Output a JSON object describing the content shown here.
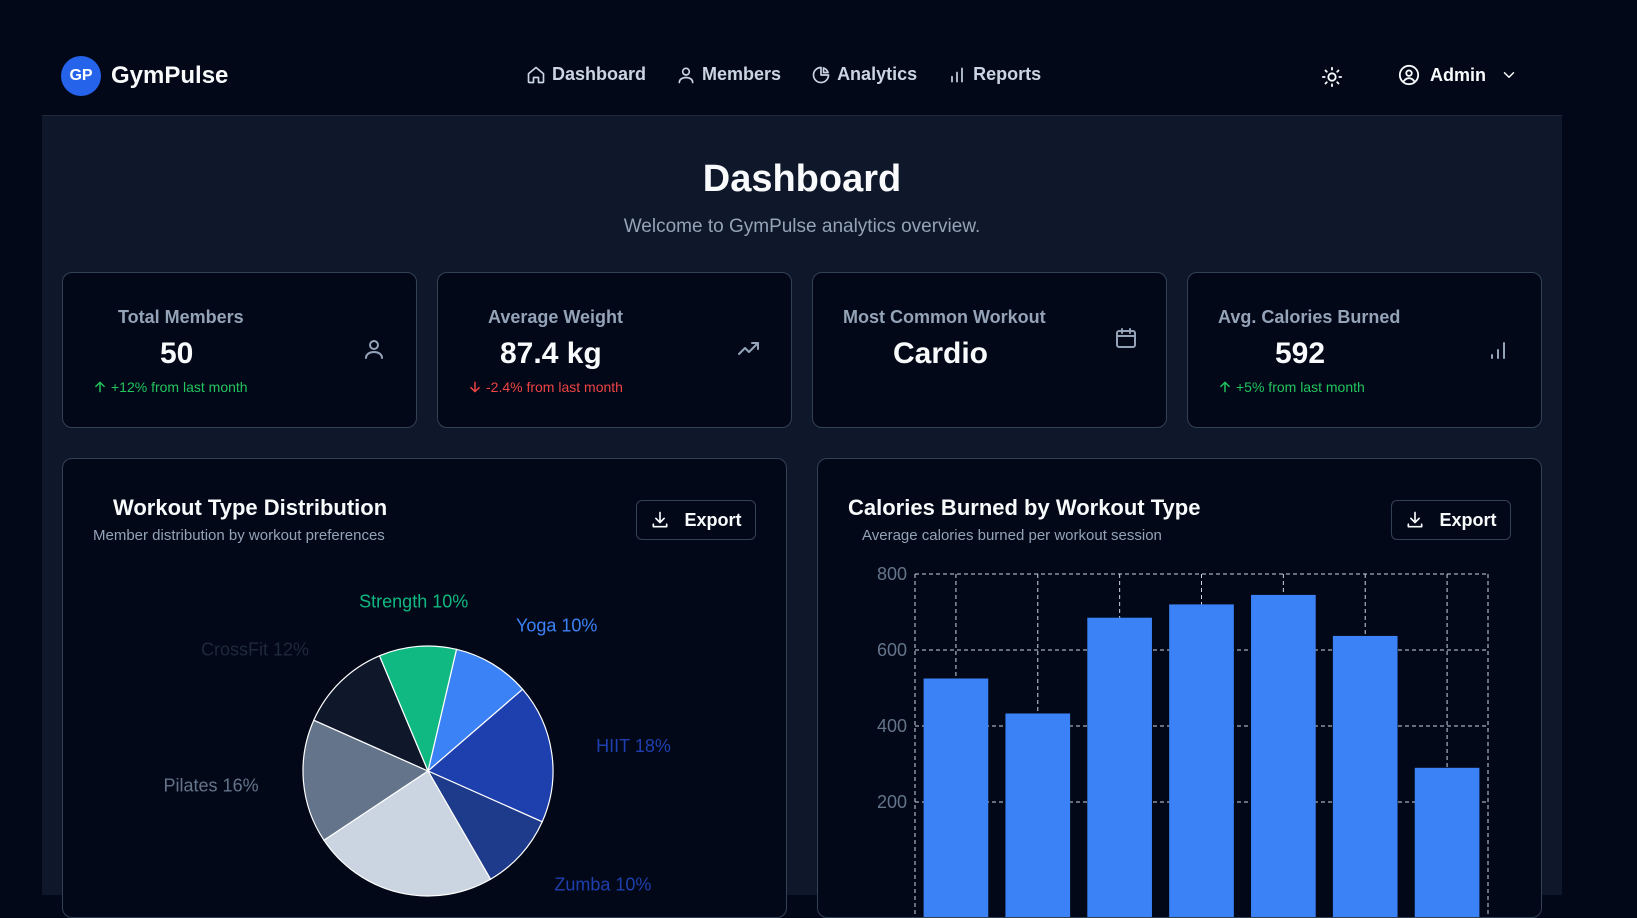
{
  "app": {
    "logo_initials": "GP",
    "name": "GymPulse"
  },
  "nav": {
    "items": [
      {
        "label": "Dashboard",
        "icon": "home-icon"
      },
      {
        "label": "Members",
        "icon": "user-icon"
      },
      {
        "label": "Analytics",
        "icon": "pie-chart-icon"
      },
      {
        "label": "Reports",
        "icon": "bar-chart-icon"
      }
    ]
  },
  "user": {
    "name": "Admin",
    "icon": "user-circle-icon"
  },
  "page": {
    "title": "Dashboard",
    "subtitle": "Welcome to GymPulse analytics overview."
  },
  "stats": [
    {
      "label": "Total Members",
      "value": "50",
      "trend": "+12% from last month",
      "trend_dir": "up",
      "icon": "user-icon"
    },
    {
      "label": "Average Weight",
      "value": "87.4 kg",
      "trend": "-2.4% from last month",
      "trend_dir": "down",
      "icon": "trending-up-icon"
    },
    {
      "label": "Most Common Workout",
      "value": "Cardio",
      "trend": "",
      "trend_dir": "none",
      "icon": "calendar-icon"
    },
    {
      "label": "Avg. Calories Burned",
      "value": "592",
      "trend": "+5% from last month",
      "trend_dir": "up",
      "icon": "bar-chart-icon"
    }
  ],
  "charts": {
    "pie": {
      "title": "Workout Type Distribution",
      "subtitle": "Member distribution by workout preferences",
      "export_label": "Export"
    },
    "bar": {
      "title": "Calories Burned by Workout Type",
      "subtitle": "Average calories burned per workout session",
      "export_label": "Export"
    }
  },
  "chart_data": [
    {
      "type": "pie",
      "slices": [
        {
          "label": "Yoga 10%",
          "value": 10,
          "color": "#3b82f6"
        },
        {
          "label": "HIIT 18%",
          "value": 18,
          "color": "#1e40af"
        },
        {
          "label": "Zumba 10%",
          "value": 10,
          "color": "#1e3a8a"
        },
        {
          "label": "",
          "value": 24,
          "color": "#cbd5e1"
        },
        {
          "label": "Pilates 16%",
          "value": 16,
          "color": "#64748b"
        },
        {
          "label": "CrossFit 12%",
          "value": 12,
          "color": "#0f172a"
        },
        {
          "label": "Strength 10%",
          "value": 10,
          "color": "#10b981"
        }
      ],
      "label_colors": [
        "#3b82f6",
        "#1e40af",
        "#1e40af",
        "#cbd5e1",
        "#64748b",
        "#1e293b",
        "#10b981"
      ]
    },
    {
      "type": "bar",
      "values": [
        525,
        433,
        685,
        720,
        745,
        637,
        290
      ],
      "bar_color": "#3b82f6",
      "yticks": [
        "800",
        "600",
        "400",
        "200"
      ],
      "ylim": [
        0,
        800
      ],
      "grid": true
    }
  ]
}
